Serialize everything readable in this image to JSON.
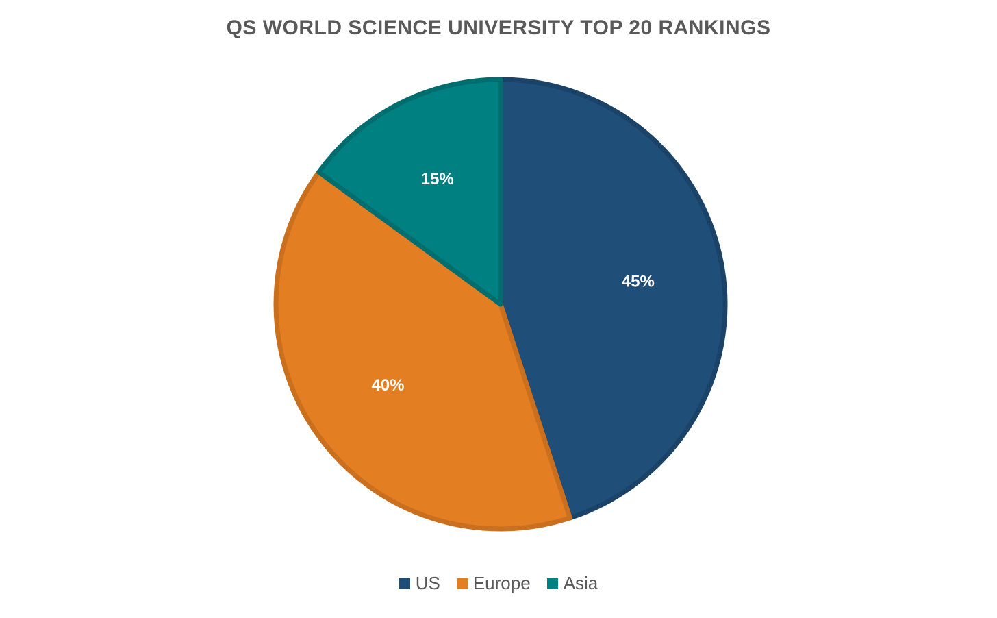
{
  "chart_data": {
    "type": "pie",
    "title": "QS WORLD SCIENCE UNIVERSITY TOP 20 RANKINGS",
    "categories": [
      "US",
      "Europe",
      "Asia"
    ],
    "values": [
      45,
      40,
      15
    ],
    "labels": [
      "45%",
      "40%",
      "15%"
    ],
    "colors": [
      "#1F4E79",
      "#E37E22",
      "#008080"
    ],
    "edge_colors": [
      "#1B4368",
      "#C96F1D",
      "#006E6E"
    ],
    "legend_position": "bottom",
    "start_angle": "12 o'clock, clockwise"
  }
}
